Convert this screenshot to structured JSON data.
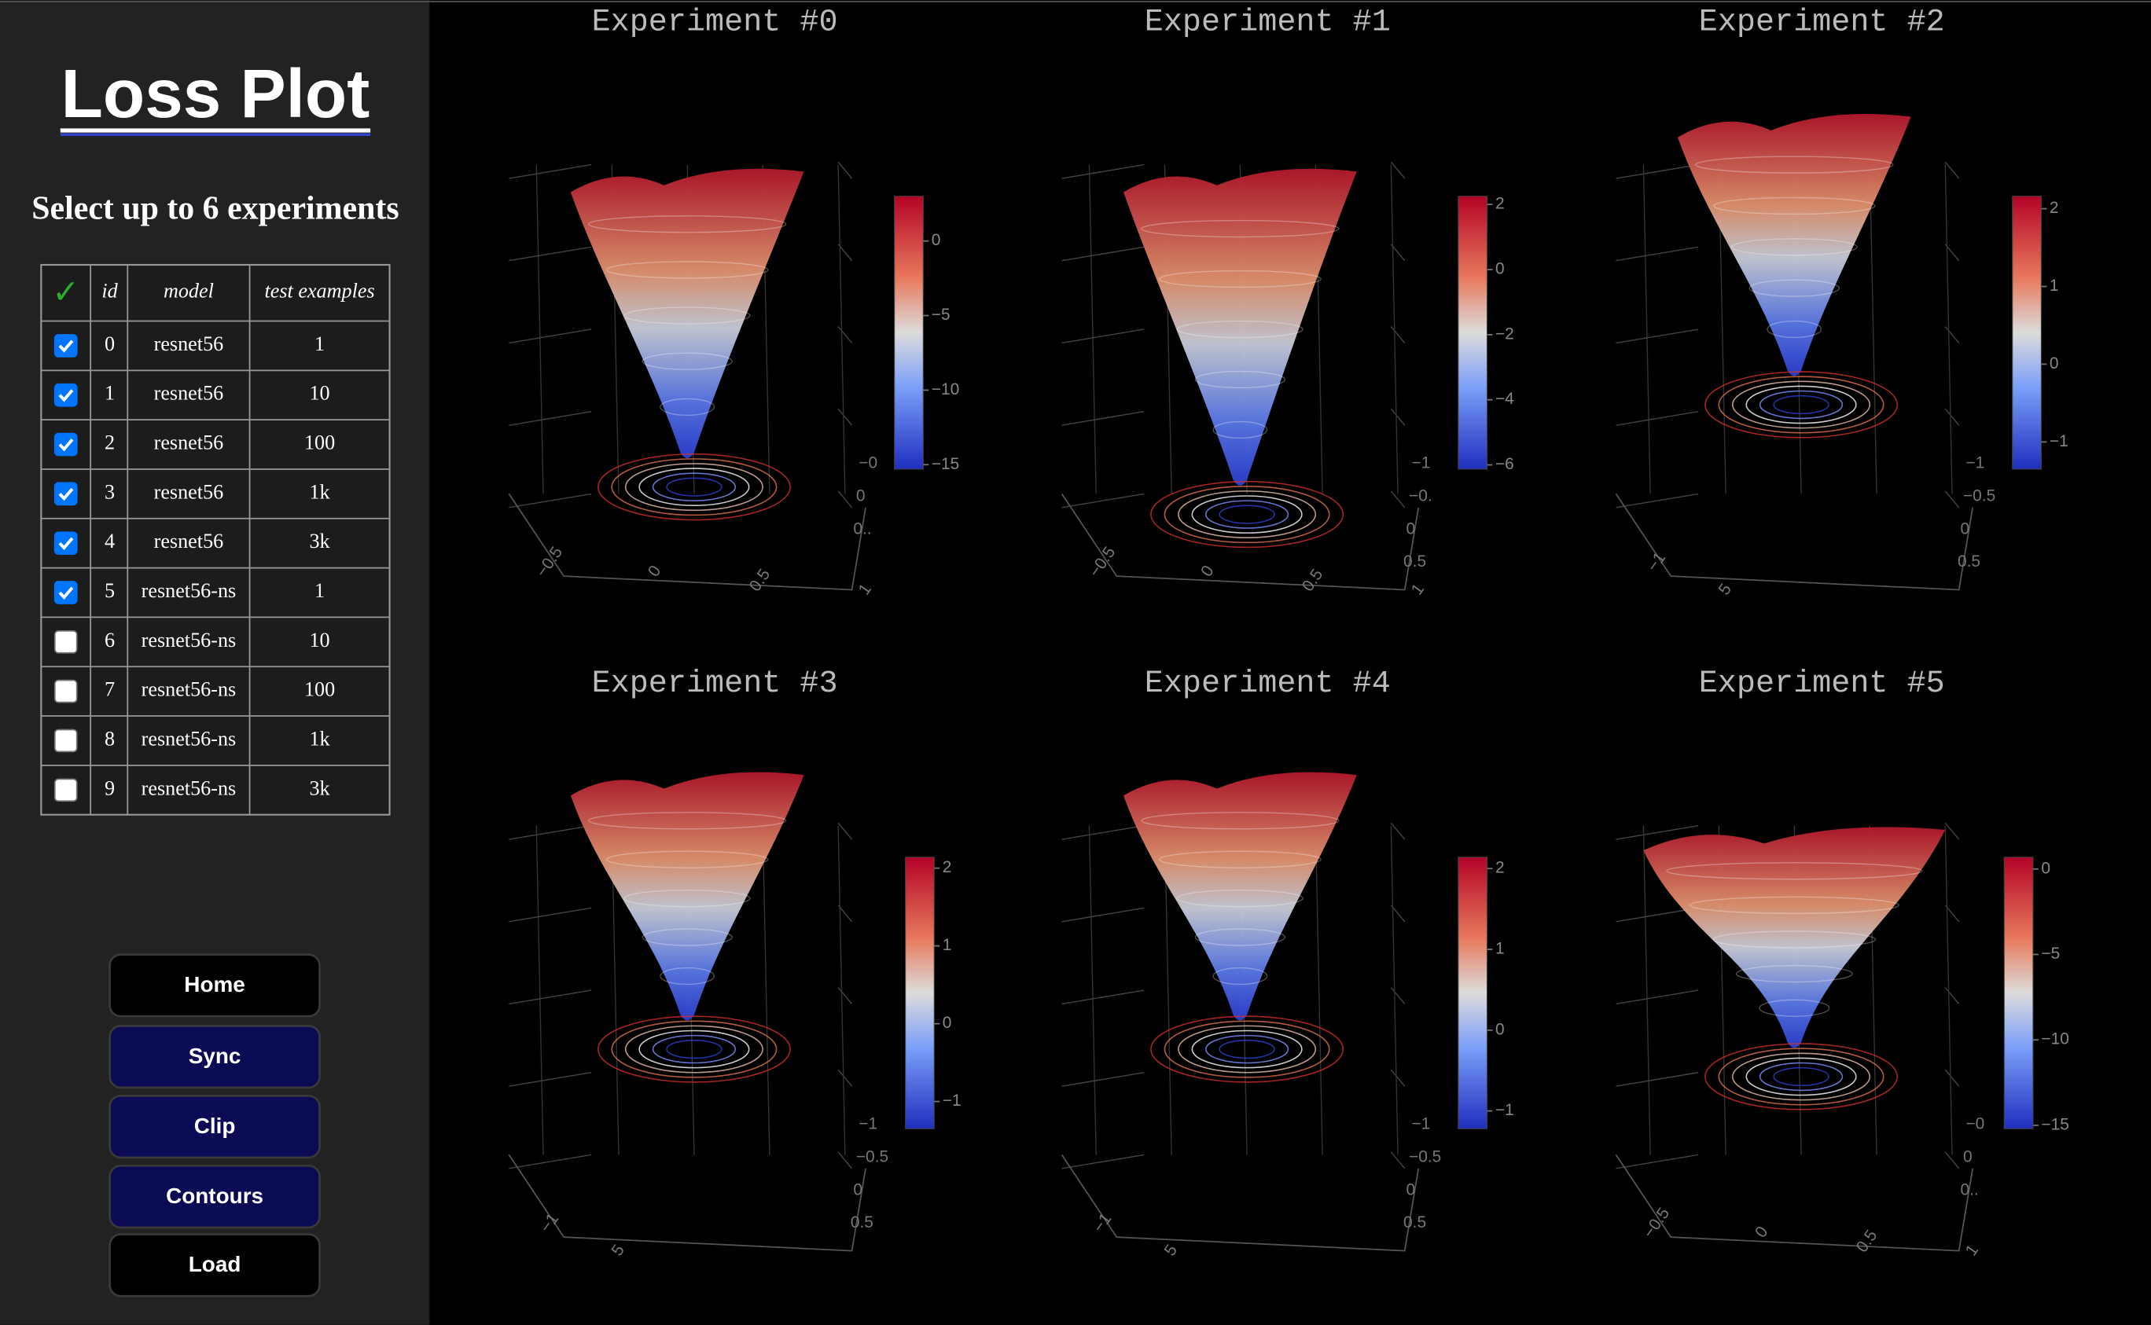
{
  "sidebar": {
    "title": "Loss Plot",
    "subtitle": "Select up to 6 experiments",
    "table": {
      "header": [
        "✓",
        "id",
        "model",
        "test examples"
      ],
      "rows": [
        {
          "checked": true,
          "cells": [
            "0",
            "resnet56",
            "1"
          ]
        },
        {
          "checked": true,
          "cells": [
            "1",
            "resnet56",
            "10"
          ]
        },
        {
          "checked": true,
          "cells": [
            "2",
            "resnet56",
            "100"
          ]
        },
        {
          "checked": true,
          "cells": [
            "3",
            "resnet56",
            "1k"
          ]
        },
        {
          "checked": true,
          "cells": [
            "4",
            "resnet56",
            "3k"
          ]
        },
        {
          "checked": true,
          "cells": [
            "5",
            "resnet56-ns",
            "1"
          ]
        },
        {
          "checked": false,
          "cells": [
            "6",
            "resnet56-ns",
            "10"
          ]
        },
        {
          "checked": false,
          "cells": [
            "7",
            "resnet56-ns",
            "100"
          ]
        },
        {
          "checked": false,
          "cells": [
            "8",
            "resnet56-ns",
            "1k"
          ]
        },
        {
          "checked": false,
          "cells": [
            "9",
            "resnet56-ns",
            "3k"
          ]
        }
      ]
    }
  },
  "buttons": [
    "Home",
    "Sync",
    "Clip",
    "Contours",
    "Load"
  ],
  "plots": [
    {
      "title": "Experiment #0",
      "colorbar": {
        "range": [
          -15.3,
          3
        ],
        "ticks": [
          {
            "value": 0,
            "label": "0"
          },
          {
            "value": -5,
            "label": "−5"
          },
          {
            "value": -10,
            "label": "−10"
          },
          {
            "value": -15,
            "label": "−15"
          }
        ]
      },
      "axis_ticks": {
        "bottom": [
          "−0.5",
          "0",
          "0.5",
          "1"
        ],
        "right": [
          "−0",
          "0",
          "0.."
        ]
      }
    },
    {
      "title": "Experiment #1",
      "colorbar": {
        "range": [
          -6.13,
          2.25
        ],
        "ticks": [
          {
            "value": 2,
            "label": "2"
          },
          {
            "value": 0,
            "label": "0"
          },
          {
            "value": -2,
            "label": "−2"
          },
          {
            "value": -4,
            "label": "−4"
          },
          {
            "value": -6,
            "label": "−6"
          }
        ]
      },
      "axis_ticks": {
        "bottom": [
          "−0.5",
          "0",
          "0.5",
          "1"
        ],
        "right": [
          "−1",
          "−0.",
          "0",
          "0.5"
        ]
      }
    },
    {
      "title": "Experiment #2",
      "colorbar": {
        "range": [
          -1.35,
          2.16
        ],
        "ticks": [
          {
            "value": 2,
            "label": "2"
          },
          {
            "value": 1,
            "label": "1"
          },
          {
            "value": 0,
            "label": "0"
          },
          {
            "value": -1,
            "label": "−1"
          }
        ]
      },
      "axis_ticks": {
        "bottom": [
          "−1",
          "5"
        ],
        "right": [
          "−1",
          "−0.5",
          "0",
          "0.5"
        ]
      }
    },
    {
      "title": "Experiment #3",
      "colorbar": {
        "range": [
          -1.35,
          2.14
        ],
        "ticks": [
          {
            "value": 2,
            "label": "2"
          },
          {
            "value": 1,
            "label": "1"
          },
          {
            "value": 0,
            "label": "0"
          },
          {
            "value": -1,
            "label": "−1"
          }
        ]
      },
      "axis_ticks": {
        "bottom": [
          "−1",
          "5"
        ],
        "right": [
          "−1",
          "−0.5",
          "0",
          "0.5"
        ]
      }
    },
    {
      "title": "Experiment #4",
      "colorbar": {
        "range": [
          -1.22,
          2.14
        ],
        "ticks": [
          {
            "value": 2,
            "label": "2"
          },
          {
            "value": 1,
            "label": "1"
          },
          {
            "value": 0,
            "label": "0"
          },
          {
            "value": -1,
            "label": "−1"
          }
        ]
      },
      "axis_ticks": {
        "bottom": [
          "−1",
          "5"
        ],
        "right": [
          "−1",
          "−0.5",
          "0",
          "0.5"
        ]
      }
    },
    {
      "title": "Experiment #5",
      "colorbar": {
        "range": [
          -15.2,
          0.69
        ],
        "ticks": [
          {
            "value": 0,
            "label": "0"
          },
          {
            "value": -5,
            "label": "−5"
          },
          {
            "value": -10,
            "label": "−10"
          },
          {
            "value": -15,
            "label": "−15"
          }
        ]
      },
      "axis_ticks": {
        "bottom": [
          "−0.5",
          "0",
          "0.5",
          "1"
        ],
        "right": [
          "−0",
          "0",
          "0.."
        ]
      }
    }
  ]
}
